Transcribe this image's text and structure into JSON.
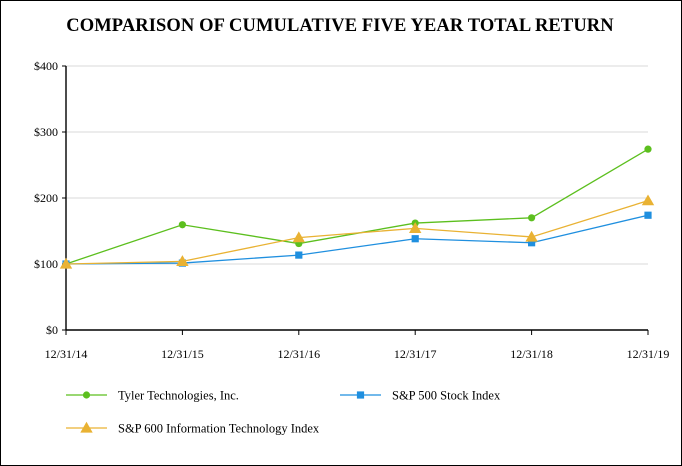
{
  "chart_data": {
    "type": "line",
    "title": "COMPARISON OF CUMULATIVE FIVE YEAR TOTAL RETURN",
    "xlabel": "",
    "ylabel": "",
    "x": [
      "12/31/14",
      "12/31/15",
      "12/31/16",
      "12/31/17",
      "12/31/18",
      "12/31/19"
    ],
    "ylim": [
      0,
      400
    ],
    "yticks": [
      0,
      100,
      200,
      300,
      400
    ],
    "ytick_labels": [
      "$0",
      "$100",
      "$200",
      "$300",
      "$400"
    ],
    "grid": true,
    "legend_position": "bottom",
    "series": [
      {
        "name": "Tyler Technologies, Inc.",
        "marker": "circle",
        "color": "#5cbf1e",
        "values": [
          100,
          159.5,
          131,
          162,
          170,
          274
        ]
      },
      {
        "name": "S&P 500 Stock Index",
        "marker": "square",
        "color": "#1f8fdf",
        "values": [
          100,
          101.4,
          113.5,
          138.3,
          132.2,
          173.9
        ]
      },
      {
        "name": "S&P 600 Information Technology Index",
        "marker": "triangle",
        "color": "#e9b233",
        "values": [
          100,
          104,
          140,
          154,
          141,
          196
        ]
      }
    ]
  }
}
